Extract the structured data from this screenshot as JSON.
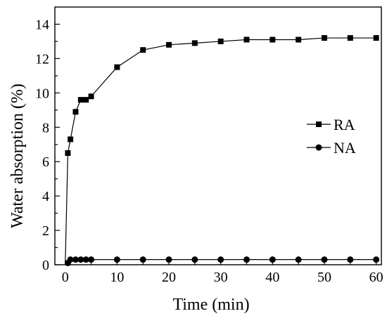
{
  "chart_data": {
    "type": "line",
    "xlabel": "Time (min)",
    "ylabel": "Water absorption (%)",
    "xlim": [
      -2,
      61
    ],
    "ylim": [
      0,
      15
    ],
    "x_ticks": [
      "0",
      "10",
      "20",
      "30",
      "40",
      "50",
      "60"
    ],
    "y_ticks": [
      "0",
      "2",
      "4",
      "6",
      "8",
      "10",
      "12",
      "14"
    ],
    "grid": false,
    "legend_position": "right-middle",
    "series": [
      {
        "name": "RA",
        "marker": "square",
        "color": "#000000",
        "x": [
          0,
          0.5,
          1,
          2,
          3,
          4,
          5,
          10,
          15,
          20,
          25,
          30,
          35,
          40,
          45,
          50,
          55,
          60
        ],
        "values": [
          0,
          6.5,
          7.3,
          8.9,
          9.6,
          9.6,
          9.8,
          11.5,
          12.5,
          12.8,
          12.9,
          13.0,
          13.1,
          13.1,
          13.1,
          13.2,
          13.2,
          13.2
        ]
      },
      {
        "name": "NA",
        "marker": "circle",
        "color": "#000000",
        "x": [
          0,
          0.5,
          1,
          2,
          3,
          4,
          5,
          10,
          15,
          20,
          25,
          30,
          35,
          40,
          45,
          50,
          55,
          60
        ],
        "values": [
          0,
          0.1,
          0.3,
          0.3,
          0.3,
          0.3,
          0.3,
          0.3,
          0.3,
          0.3,
          0.3,
          0.3,
          0.3,
          0.3,
          0.3,
          0.3,
          0.3,
          0.3
        ]
      }
    ]
  }
}
